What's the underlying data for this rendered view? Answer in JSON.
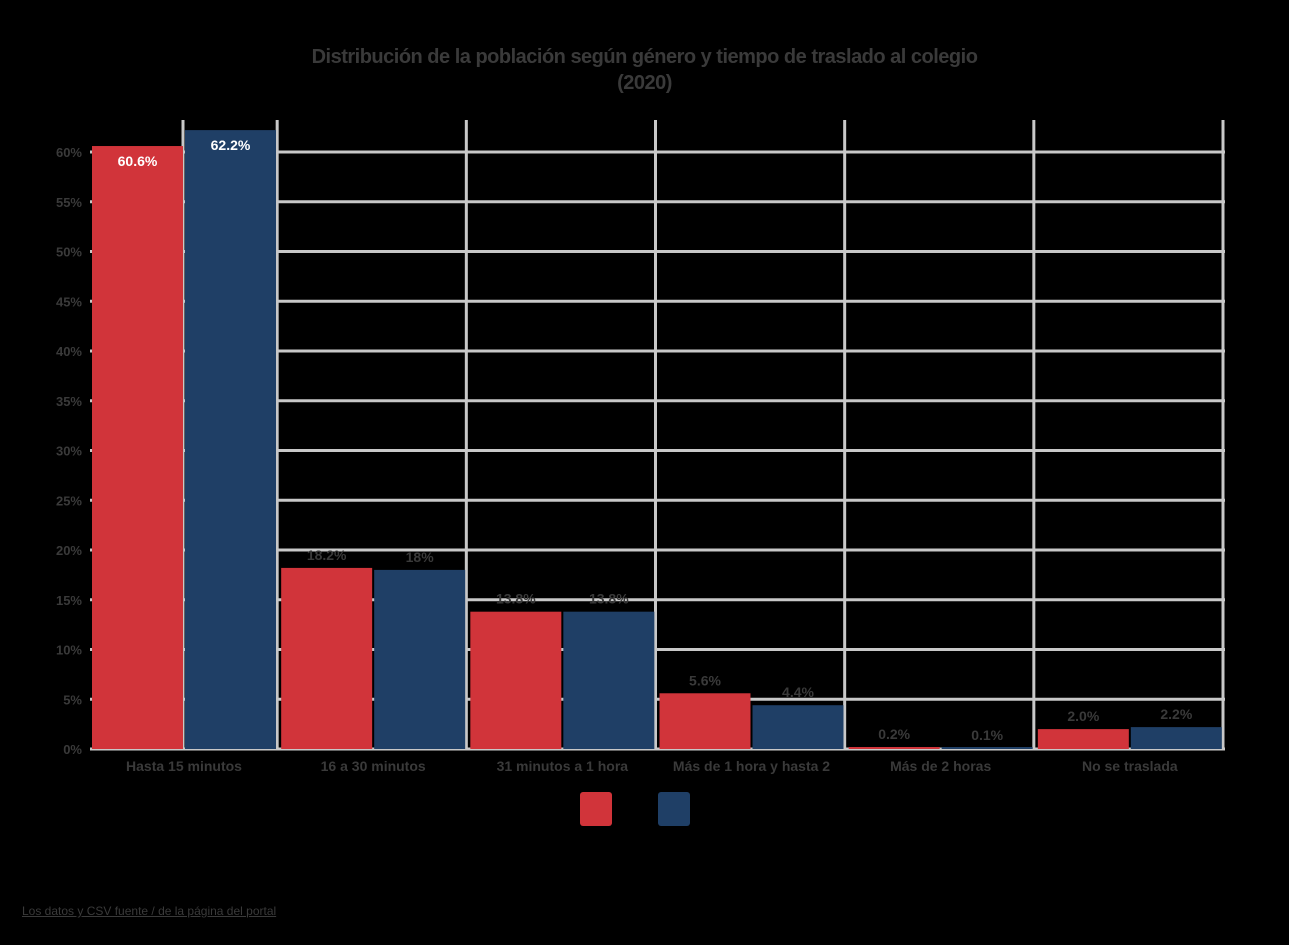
{
  "chart_data": {
    "type": "bar",
    "title": "Distribución de la población según género y tiempo de traslado al colegio",
    "subtitle": "(2020)",
    "xlabel": "",
    "ylabel": "",
    "ylim": [
      0,
      60
    ],
    "ytick_values": [
      0,
      5,
      10,
      15,
      20,
      25,
      30,
      35,
      40,
      45,
      50,
      55,
      60
    ],
    "ytick_labels": [
      "0%",
      "5%",
      "10%",
      "15%",
      "20%",
      "25%",
      "30%",
      "35%",
      "40%",
      "45%",
      "50%",
      "55%",
      "60%"
    ],
    "grid": true,
    "legend_position": "bottom-center",
    "categories": [
      "Hasta 15 minutos",
      "16 a 30 minutos",
      "31 minutos a 1 hora",
      "Más de 1 hora y hasta 2",
      "Más de 2 horas",
      "No se traslada"
    ],
    "series": [
      {
        "name": "",
        "color": "#d1343a",
        "values": [
          60.6,
          18.2,
          13.8,
          5.6,
          0.2,
          2.0
        ],
        "labels": [
          "60.6%",
          "18.2%",
          "13.8%",
          "5.6%",
          "0.2%",
          "2.0%"
        ]
      },
      {
        "name": "",
        "color": "#1f3f66",
        "values": [
          62.2,
          18.0,
          13.8,
          4.4,
          0.1,
          2.2
        ],
        "labels": [
          "62.2%",
          "18%",
          "13.8%",
          "4.4%",
          "0.1%",
          "2.2%"
        ]
      }
    ]
  },
  "source_link": "Los datos y CSV fuente / de la página del portal"
}
